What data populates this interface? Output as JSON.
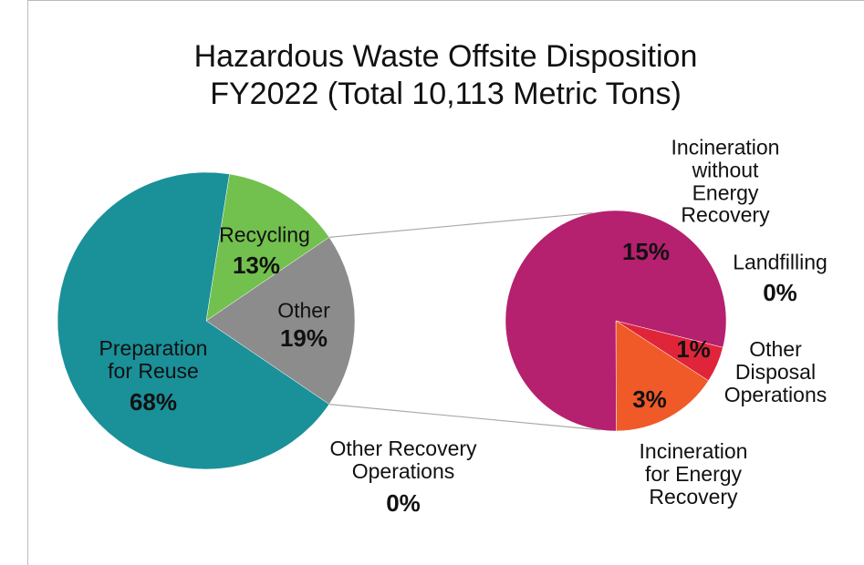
{
  "chart_data": [
    {
      "type": "pie",
      "title": "Hazardous Waste Offsite Disposition\nFY2022 (Total 10,113 Metric Tons)",
      "categories": [
        "Recycling",
        "Other",
        "Other Recovery\nOperations",
        "Preparation\nfor Reuse"
      ],
      "values": [
        13,
        19,
        0,
        68
      ],
      "value_labels": [
        "13%",
        "19%",
        "0%",
        "68%"
      ],
      "colors": [
        "#72c04e",
        "#8c8c8c",
        "#8c8c8c",
        "#1a9099"
      ]
    },
    {
      "type": "pie",
      "categories": [
        "Landfilling",
        "Other\nDisposal\nOperations",
        "Incineration\nfor Energy\nRecovery",
        "Incineration\nwithout Energy\nRecovery"
      ],
      "values": [
        0,
        1,
        3,
        15
      ],
      "value_labels": [
        "0%",
        "1%",
        "3%",
        "15%"
      ],
      "colors": [
        "#b5206f",
        "#e0253a",
        "#f05a28",
        "#b5206f"
      ]
    }
  ]
}
